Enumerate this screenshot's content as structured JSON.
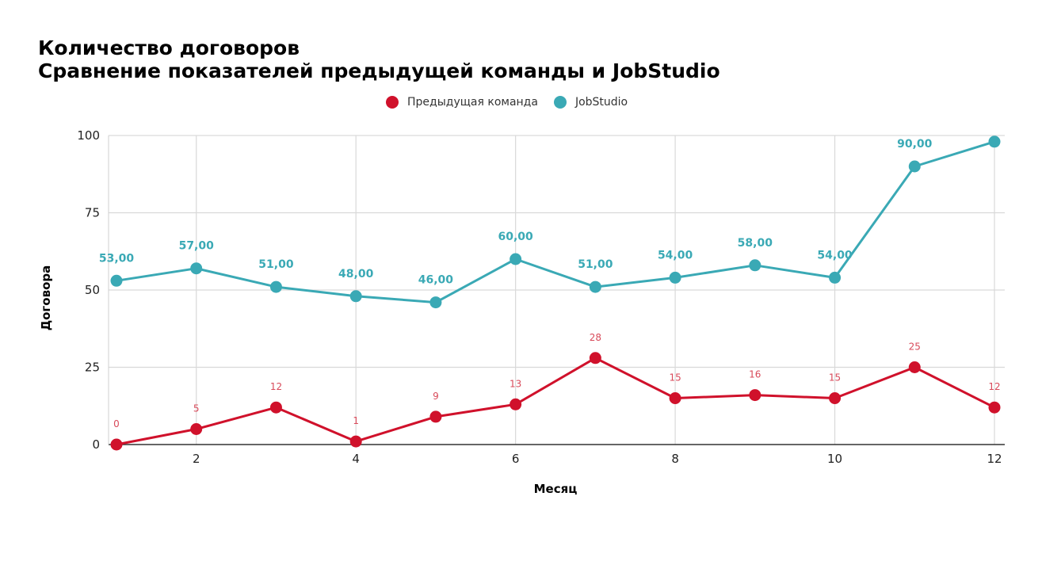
{
  "chart_data": {
    "type": "line",
    "title_line1": "Количество договоров",
    "title_line2": "Сравнение показателей предыдущей команды и JobStudio",
    "xlabel": "Месяц",
    "ylabel": "Договора",
    "x": [
      1,
      2,
      3,
      4,
      5,
      6,
      7,
      8,
      9,
      10,
      11,
      12
    ],
    "xlim": [
      1,
      12
    ],
    "ylim": [
      0,
      100
    ],
    "x_ticks": [
      "2",
      "4",
      "6",
      "8",
      "10",
      "12"
    ],
    "x_tick_values": [
      2,
      4,
      6,
      8,
      10,
      12
    ],
    "y_ticks": [
      "0",
      "25",
      "50",
      "75",
      "100"
    ],
    "y_tick_values": [
      0,
      25,
      50,
      75,
      100
    ],
    "grid": true,
    "legend_position": "top-center",
    "series": [
      {
        "name": "Предыдущая команда",
        "color": "#d0112b",
        "values": [
          0,
          5,
          12,
          1,
          9,
          13,
          28,
          15,
          16,
          15,
          25,
          12
        ],
        "labels": [
          "0",
          "5",
          "12",
          "1",
          "9",
          "13",
          "28",
          "15",
          "16",
          "15",
          "25",
          "12"
        ]
      },
      {
        "name": "JobStudio",
        "color": "#3aa9b5",
        "values": [
          53,
          57,
          51,
          48,
          46,
          60,
          51,
          54,
          58,
          54,
          90,
          98
        ],
        "labels": [
          "53,00",
          "57,00",
          "51,00",
          "48,00",
          "46,00",
          "60,00",
          "51,00",
          "54,00",
          "58,00",
          "54,00",
          "90,00",
          ""
        ]
      }
    ]
  }
}
